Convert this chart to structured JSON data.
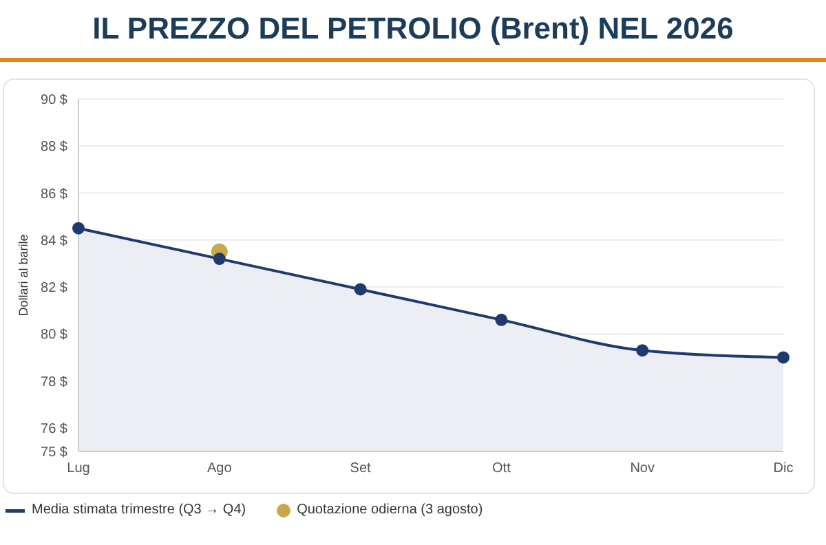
{
  "chart_data": {
    "type": "area",
    "title": "IL PREZZO DEL PETROLIO (Brent) NEL 2026",
    "ylabel": "Dollari al barile",
    "categories": [
      "Lug",
      "Ago",
      "Set",
      "Ott",
      "Nov",
      "Dic"
    ],
    "series": [
      {
        "name": "Media stimata trimestre (Q3 → Q4)",
        "color": "#1f3a6e",
        "values": [
          84.5,
          83.2,
          81.9,
          80.6,
          79.3,
          79.0
        ]
      },
      {
        "name": "Quotazione odierna (3 agosto)",
        "type": "scatter",
        "color": "#c9a84c",
        "x": [
          "Ago"
        ],
        "values": [
          83.5
        ]
      }
    ],
    "ylim": [
      75,
      90
    ],
    "yticks": [
      {
        "value": 75,
        "label": "75 $"
      },
      {
        "value": 76,
        "label": "76 $"
      },
      {
        "value": 78,
        "label": "78 $"
      },
      {
        "value": 80,
        "label": "80 $"
      },
      {
        "value": 82,
        "label": "82 $"
      },
      {
        "value": 84,
        "label": "84 $"
      },
      {
        "value": 86,
        "label": "86 $"
      },
      {
        "value": 88,
        "label": "88 $"
      },
      {
        "value": 90,
        "label": "90 $"
      }
    ],
    "grid": "y",
    "legend": "bottom",
    "marker": "circle"
  }
}
